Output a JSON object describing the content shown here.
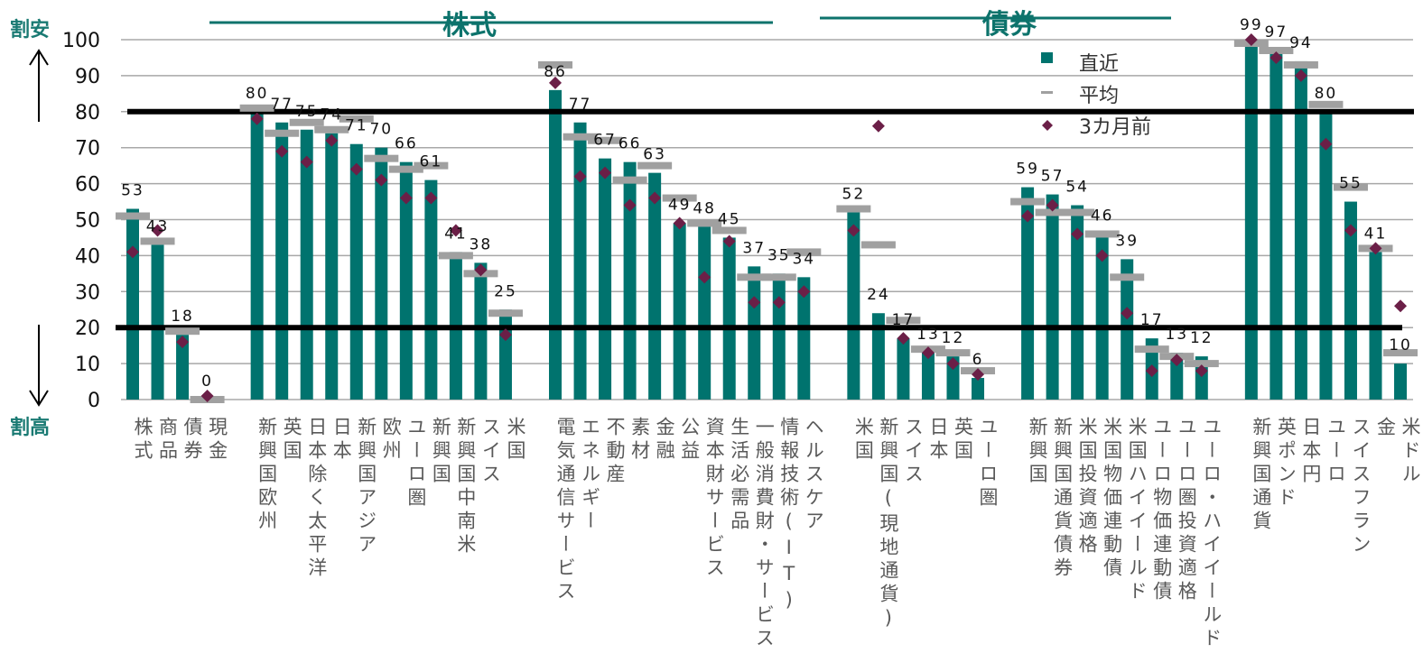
{
  "side": {
    "cheap_label": "割安",
    "expensive_label": "割高"
  },
  "sections": {
    "equity": "株式",
    "bonds": "債券"
  },
  "legend": {
    "current": "直近",
    "average": "平均",
    "three_months_ago": "3カ月前"
  },
  "colors": {
    "current": "#00736e",
    "average": "#a0a0a0",
    "three_months_ago": "#6b1f47",
    "section": "#0d736c",
    "grid": "#a8a8a8",
    "threshold": "#000000"
  },
  "chart_data": {
    "type": "bar",
    "ylim": [
      0,
      100
    ],
    "yticks": [
      0,
      10,
      20,
      30,
      40,
      50,
      60,
      70,
      80,
      90,
      100
    ],
    "threshold_lines": [
      80,
      20
    ],
    "grid": true,
    "legend_position": "top-right",
    "series_names": [
      "直近",
      "平均",
      "3カ月前"
    ],
    "groups": [
      {
        "categories": [
          "株式",
          "商品",
          "債券",
          "現金"
        ],
        "current": [
          53,
          43,
          18,
          0
        ],
        "average": [
          51,
          44,
          19,
          0
        ],
        "three_months_ago": [
          41,
          47,
          16,
          1
        ]
      },
      {
        "categories": [
          "新興国欧州",
          "英国",
          "日本除く太平洋",
          "日本",
          "新興国アジア",
          "欧州",
          "ユーロ圏",
          "新興国",
          "新興国中南米",
          "スイス",
          "米国"
        ],
        "current": [
          80,
          77,
          75,
          74,
          71,
          70,
          66,
          61,
          41,
          38,
          25
        ],
        "average": [
          81,
          74,
          77,
          75,
          78,
          67,
          64,
          65,
          40,
          35,
          24
        ],
        "three_months_ago": [
          78,
          69,
          66,
          72,
          64,
          61,
          56,
          56,
          47,
          36,
          18
        ]
      },
      {
        "categories": [
          "電気通信サービス",
          "エネルギー",
          "不動産",
          "素材",
          "金融",
          "公益",
          "資本財サービス",
          "生活必需品",
          "一般消費財・サービス",
          "情報技術(IT)",
          "ヘルスケア"
        ],
        "current": [
          86,
          77,
          67,
          66,
          63,
          49,
          48,
          45,
          37,
          35,
          34
        ],
        "average": [
          93,
          73,
          72,
          61,
          65,
          56,
          49,
          47,
          34,
          34,
          41
        ],
        "three_months_ago": [
          88,
          62,
          63,
          54,
          56,
          49,
          34,
          44,
          27,
          27,
          30
        ]
      },
      {
        "categories": [
          "米国",
          "新興国(現地通貨)",
          "スイス",
          "日本",
          "英国",
          "ユーロ圏"
        ],
        "current": [
          52,
          24,
          17,
          13,
          12,
          6
        ],
        "average": [
          53,
          43,
          22,
          14,
          13,
          8
        ],
        "three_months_ago": [
          47,
          76,
          17,
          13,
          10,
          7
        ]
      },
      {
        "categories": [
          "新興国",
          "新興国通貨債券",
          "米国投資適格",
          "米国物価連動債",
          "米国ハイイールド",
          "ユーロ物価連動債",
          "ユーロ圏投資適格",
          "ユーロ・ハイイールド"
        ],
        "current": [
          59,
          57,
          54,
          46,
          39,
          17,
          13,
          12
        ],
        "average": [
          55,
          52,
          52,
          46,
          34,
          14,
          12,
          10
        ],
        "three_months_ago": [
          51,
          54,
          46,
          40,
          24,
          8,
          11,
          8
        ]
      },
      {
        "categories": [
          "新興国通貨",
          "英ポンド",
          "日本円",
          "ユーロ",
          "スイスフラン",
          "金",
          "米ドル"
        ],
        "current": [
          99,
          97,
          94,
          80,
          55,
          41,
          10
        ],
        "average": [
          99,
          97,
          93,
          82,
          59,
          42,
          13
        ],
        "three_months_ago": [
          100,
          95,
          90,
          71,
          47,
          42,
          26
        ]
      }
    ]
  }
}
